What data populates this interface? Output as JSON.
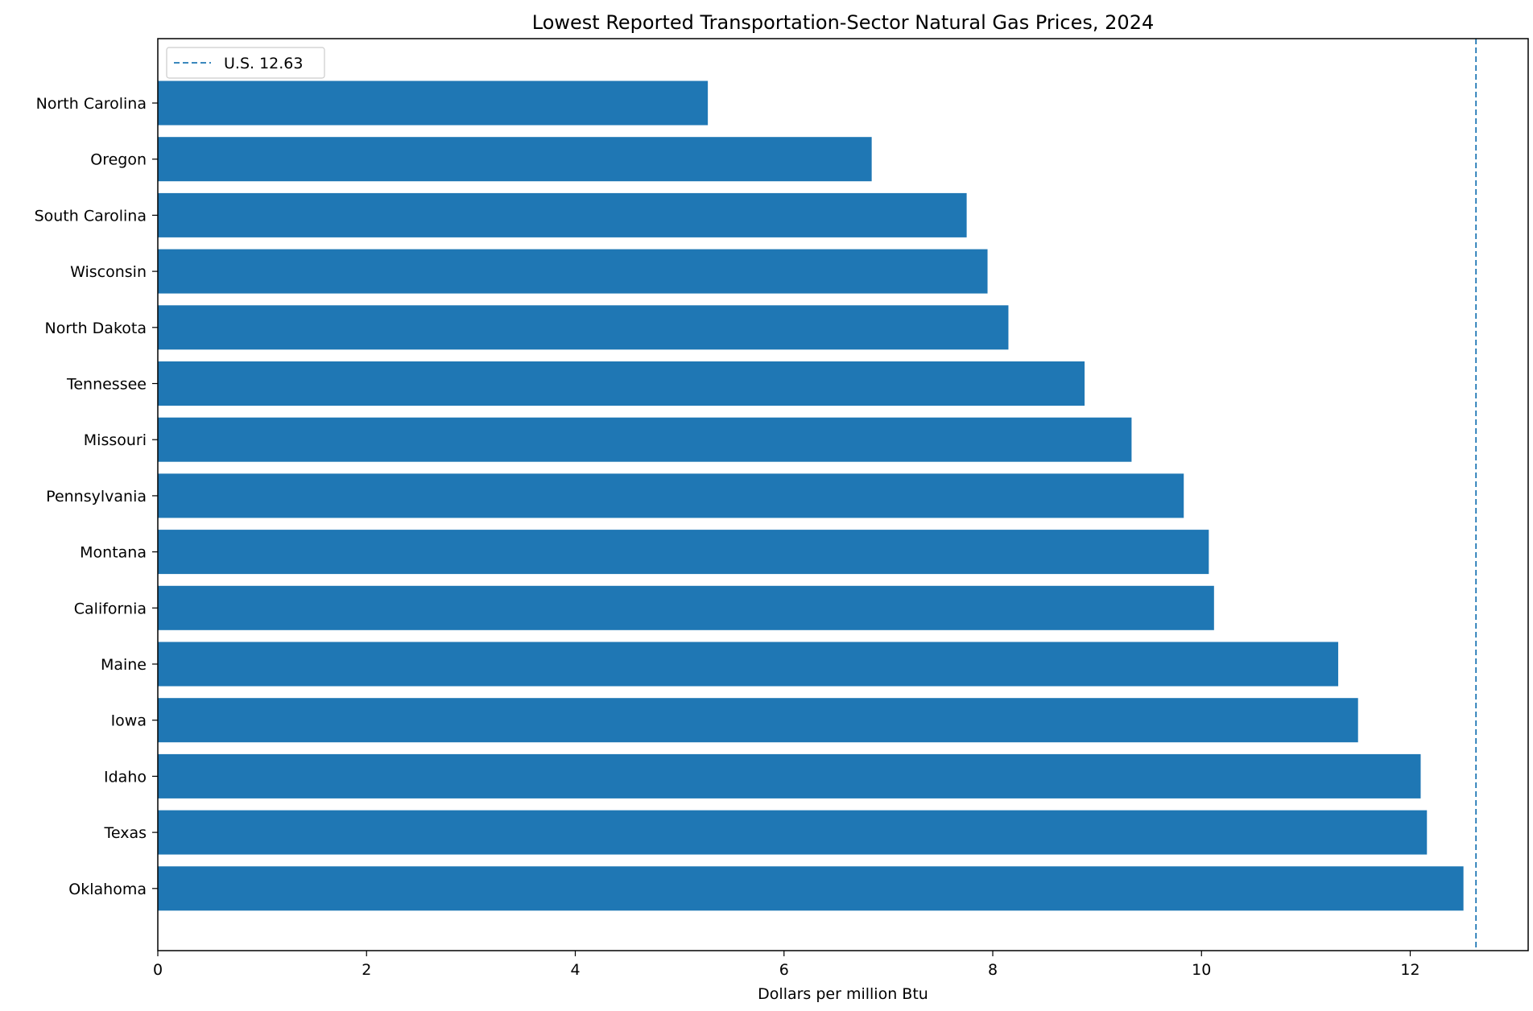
{
  "chart_data": {
    "type": "bar",
    "orientation": "horizontal",
    "title": "Lowest Reported Transportation-Sector Natural Gas Prices, 2024",
    "xlabel": "Dollars per million Btu",
    "ylabel": "",
    "categories": [
      "North Carolina",
      "Oregon",
      "South Carolina",
      "Wisconsin",
      "North Dakota",
      "Tennessee",
      "Missouri",
      "Pennsylvania",
      "Montana",
      "California",
      "Maine",
      "Iowa",
      "Idaho",
      "Texas",
      "Oklahoma"
    ],
    "values": [
      5.27,
      6.84,
      7.75,
      7.95,
      8.15,
      8.88,
      9.33,
      9.83,
      10.07,
      10.12,
      11.31,
      11.5,
      12.1,
      12.16,
      12.51
    ],
    "xlim": [
      0,
      13.13
    ],
    "xticks": [
      0,
      2,
      4,
      6,
      8,
      10,
      12
    ],
    "bar_color": "#1f77b4",
    "reference_line": {
      "value": 12.63,
      "label": "U.S. 12.63",
      "style": "dashed",
      "color": "#1f77b4"
    },
    "legend": {
      "position": "top-left",
      "entries": [
        "U.S. 12.63"
      ]
    },
    "grid": false
  }
}
